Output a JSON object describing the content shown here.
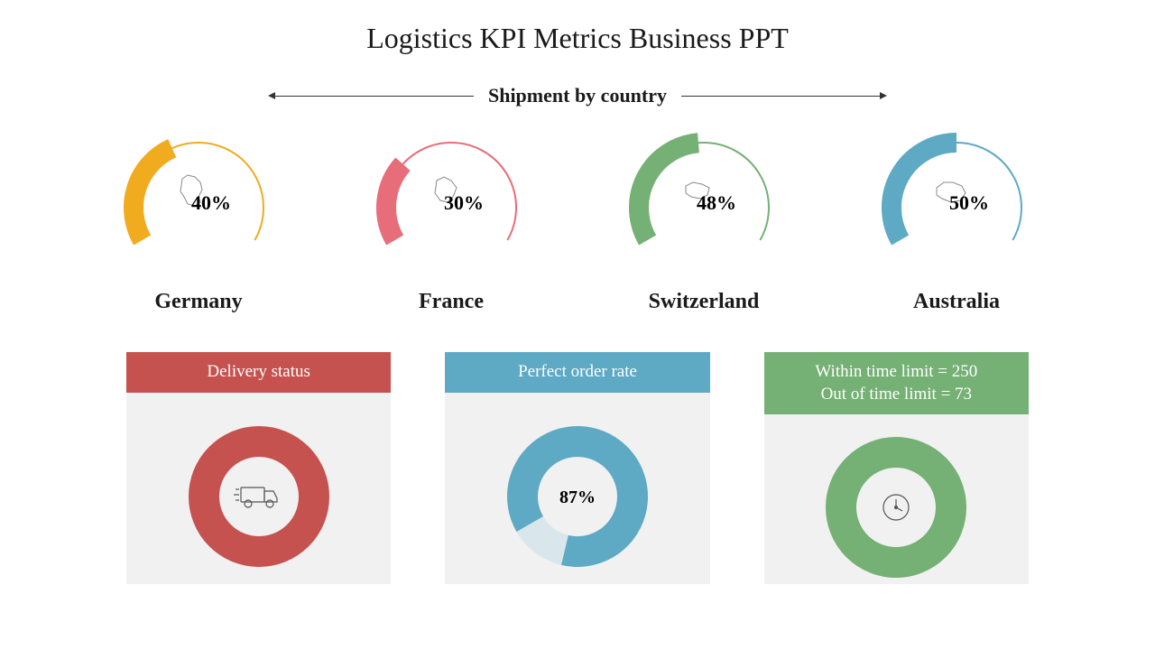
{
  "title": "Logistics KPI Metrics Business PPT",
  "section_label": "Shipment by country",
  "arrow_color": "#333333",
  "gauge_arc": {
    "start_deg": 210,
    "end_deg": -30,
    "sweep_deg": 240,
    "stroke_width": 22
  },
  "gauges": [
    {
      "country": "Germany",
      "pct": 40,
      "pct_label": "40%",
      "color": "#f0ab1f"
    },
    {
      "country": "France",
      "pct": 30,
      "pct_label": "30%",
      "color": "#e76d7a"
    },
    {
      "country": "Switzerland",
      "pct": 48,
      "pct_label": "48%",
      "color": "#75b075"
    },
    {
      "country": "Australia",
      "pct": 50,
      "pct_label": "50%",
      "color": "#5ea9c4"
    }
  ],
  "cards": [
    {
      "header_lines": [
        "Delivery status"
      ],
      "header_bg": "#c5524f",
      "ring_color": "#c5524f",
      "body_bg": "#f1f1f1",
      "icon": "truck",
      "center_text": "",
      "donut_pct": 100,
      "gap_pct": 0
    },
    {
      "header_lines": [
        "Perfect order rate"
      ],
      "header_bg": "#5ea9c4",
      "ring_color": "#5ea9c4",
      "body_bg": "#f1f1f1",
      "icon": "",
      "center_text": "87%",
      "donut_pct": 87,
      "gap_pct": 13
    },
    {
      "header_lines": [
        "Within time limit = 250",
        "Out of time limit = 73"
      ],
      "header_bg": "#75b075",
      "ring_color": "#75b075",
      "body_bg": "#f1f1f1",
      "icon": "clock",
      "center_text": "",
      "donut_pct": 100,
      "gap_pct": 0
    }
  ],
  "typography": {
    "title_fontsize": 32,
    "section_fontsize": 22,
    "gauge_pct_fontsize": 22,
    "country_fontsize": 24,
    "card_header_fontsize": 19,
    "donut_center_fontsize": 20
  },
  "colors": {
    "background": "#ffffff",
    "card_body_bg": "#f1f1f1",
    "text": "#1a1a1a",
    "map_stroke": "#888888"
  }
}
